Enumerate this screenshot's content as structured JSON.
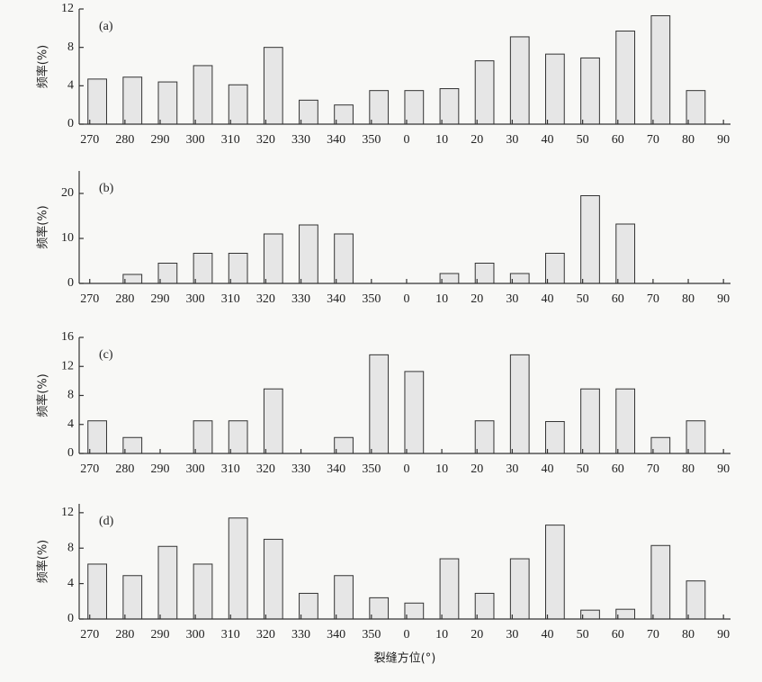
{
  "chart_data": [
    {
      "type": "histogram",
      "panel_label": "(a)",
      "ylabel": "频率(%)",
      "bins": [
        270,
        280,
        290,
        300,
        310,
        320,
        330,
        340,
        350,
        360,
        370,
        380,
        390,
        400,
        410,
        420,
        430,
        440,
        450
      ],
      "values": [
        4.7,
        4.9,
        4.4,
        6.1,
        4.1,
        8.0,
        2.5,
        2.0,
        3.5,
        3.5,
        3.7,
        6.6,
        9.1,
        7.3,
        6.9,
        9.7,
        11.3,
        3.5
      ],
      "xlim": [
        267,
        452
      ],
      "xticks": [
        270,
        280,
        290,
        300,
        310,
        320,
        330,
        340,
        350,
        {
          "value": 360,
          "label": "0"
        },
        {
          "value": 370,
          "label": "10"
        },
        {
          "value": 380,
          "label": "20"
        },
        {
          "value": 390,
          "label": "30"
        },
        {
          "value": 400,
          "label": "40"
        },
        {
          "value": 410,
          "label": "50"
        },
        {
          "value": 420,
          "label": "60"
        },
        {
          "value": 430,
          "label": "70"
        },
        {
          "value": 440,
          "label": "80"
        },
        {
          "value": 450,
          "label": "90"
        }
      ],
      "ylim": [
        0,
        12
      ],
      "yticks": [
        0,
        4,
        8,
        12
      ],
      "color": "#e6e6e6"
    },
    {
      "type": "histogram",
      "panel_label": "(b)",
      "ylabel": "频率(%)",
      "bins": [
        270,
        280,
        290,
        300,
        310,
        320,
        330,
        340,
        350,
        360,
        370,
        380,
        390,
        400,
        410,
        420,
        430,
        440,
        450
      ],
      "values": [
        0,
        2,
        4.5,
        6.7,
        6.7,
        11,
        13,
        11,
        0,
        0,
        2.2,
        4.5,
        2.2,
        6.7,
        19.5,
        13.2,
        0,
        0
      ],
      "xlim": [
        267,
        452
      ],
      "xticks": [
        270,
        280,
        290,
        300,
        310,
        320,
        330,
        340,
        350,
        {
          "value": 360,
          "label": "0"
        },
        {
          "value": 370,
          "label": "10"
        },
        {
          "value": 380,
          "label": "20"
        },
        {
          "value": 390,
          "label": "30"
        },
        {
          "value": 400,
          "label": "40"
        },
        {
          "value": 410,
          "label": "50"
        },
        {
          "value": 420,
          "label": "60"
        },
        {
          "value": 430,
          "label": "70"
        },
        {
          "value": 440,
          "label": "80"
        },
        {
          "value": 450,
          "label": "90"
        }
      ],
      "ylim": [
        0,
        25
      ],
      "yticks": [
        0,
        10,
        20
      ],
      "color": "#e6e6e6"
    },
    {
      "type": "histogram",
      "panel_label": "(c)",
      "ylabel": "频率(%)",
      "bins": [
        270,
        280,
        290,
        300,
        310,
        320,
        330,
        340,
        350,
        360,
        370,
        380,
        390,
        400,
        410,
        420,
        430,
        440,
        450
      ],
      "values": [
        4.5,
        2.2,
        0,
        4.5,
        4.5,
        8.9,
        0,
        2.2,
        13.6,
        11.3,
        0,
        4.5,
        13.6,
        4.4,
        8.9,
        8.9,
        2.2,
        4.5
      ],
      "xlim": [
        267,
        452
      ],
      "xticks": [
        270,
        280,
        290,
        300,
        310,
        320,
        330,
        340,
        350,
        {
          "value": 360,
          "label": "0"
        },
        {
          "value": 370,
          "label": "10"
        },
        {
          "value": 380,
          "label": "20"
        },
        {
          "value": 390,
          "label": "30"
        },
        {
          "value": 400,
          "label": "40"
        },
        {
          "value": 410,
          "label": "50"
        },
        {
          "value": 420,
          "label": "60"
        },
        {
          "value": 430,
          "label": "70"
        },
        {
          "value": 440,
          "label": "80"
        },
        {
          "value": 450,
          "label": "90"
        }
      ],
      "ylim": [
        0,
        16
      ],
      "yticks": [
        0,
        4,
        8,
        12,
        16
      ],
      "color": "#e6e6e6"
    },
    {
      "type": "histogram",
      "panel_label": "(d)",
      "ylabel": "频率(%)",
      "xlabel": "裂缝方位(°)",
      "bins": [
        270,
        280,
        290,
        300,
        310,
        320,
        330,
        340,
        350,
        360,
        370,
        380,
        390,
        400,
        410,
        420,
        430,
        440,
        450
      ],
      "values": [
        6.2,
        4.9,
        8.2,
        6.2,
        11.4,
        9.0,
        2.9,
        4.9,
        2.4,
        1.8,
        6.8,
        2.9,
        6.8,
        10.6,
        1.0,
        1.1,
        8.3,
        4.3
      ],
      "xlim": [
        267,
        452
      ],
      "xticks": [
        270,
        280,
        290,
        300,
        310,
        320,
        330,
        340,
        350,
        {
          "value": 360,
          "label": "0"
        },
        {
          "value": 370,
          "label": "10"
        },
        {
          "value": 380,
          "label": "20"
        },
        {
          "value": 390,
          "label": "30"
        },
        {
          "value": 400,
          "label": "40"
        },
        {
          "value": 410,
          "label": "50"
        },
        {
          "value": 420,
          "label": "60"
        },
        {
          "value": 430,
          "label": "70"
        },
        {
          "value": 440,
          "label": "80"
        },
        {
          "value": 450,
          "label": "90"
        }
      ],
      "ylim": [
        0,
        13
      ],
      "yticks": [
        0,
        4,
        8,
        12
      ],
      "color": "#e6e6e6"
    }
  ]
}
